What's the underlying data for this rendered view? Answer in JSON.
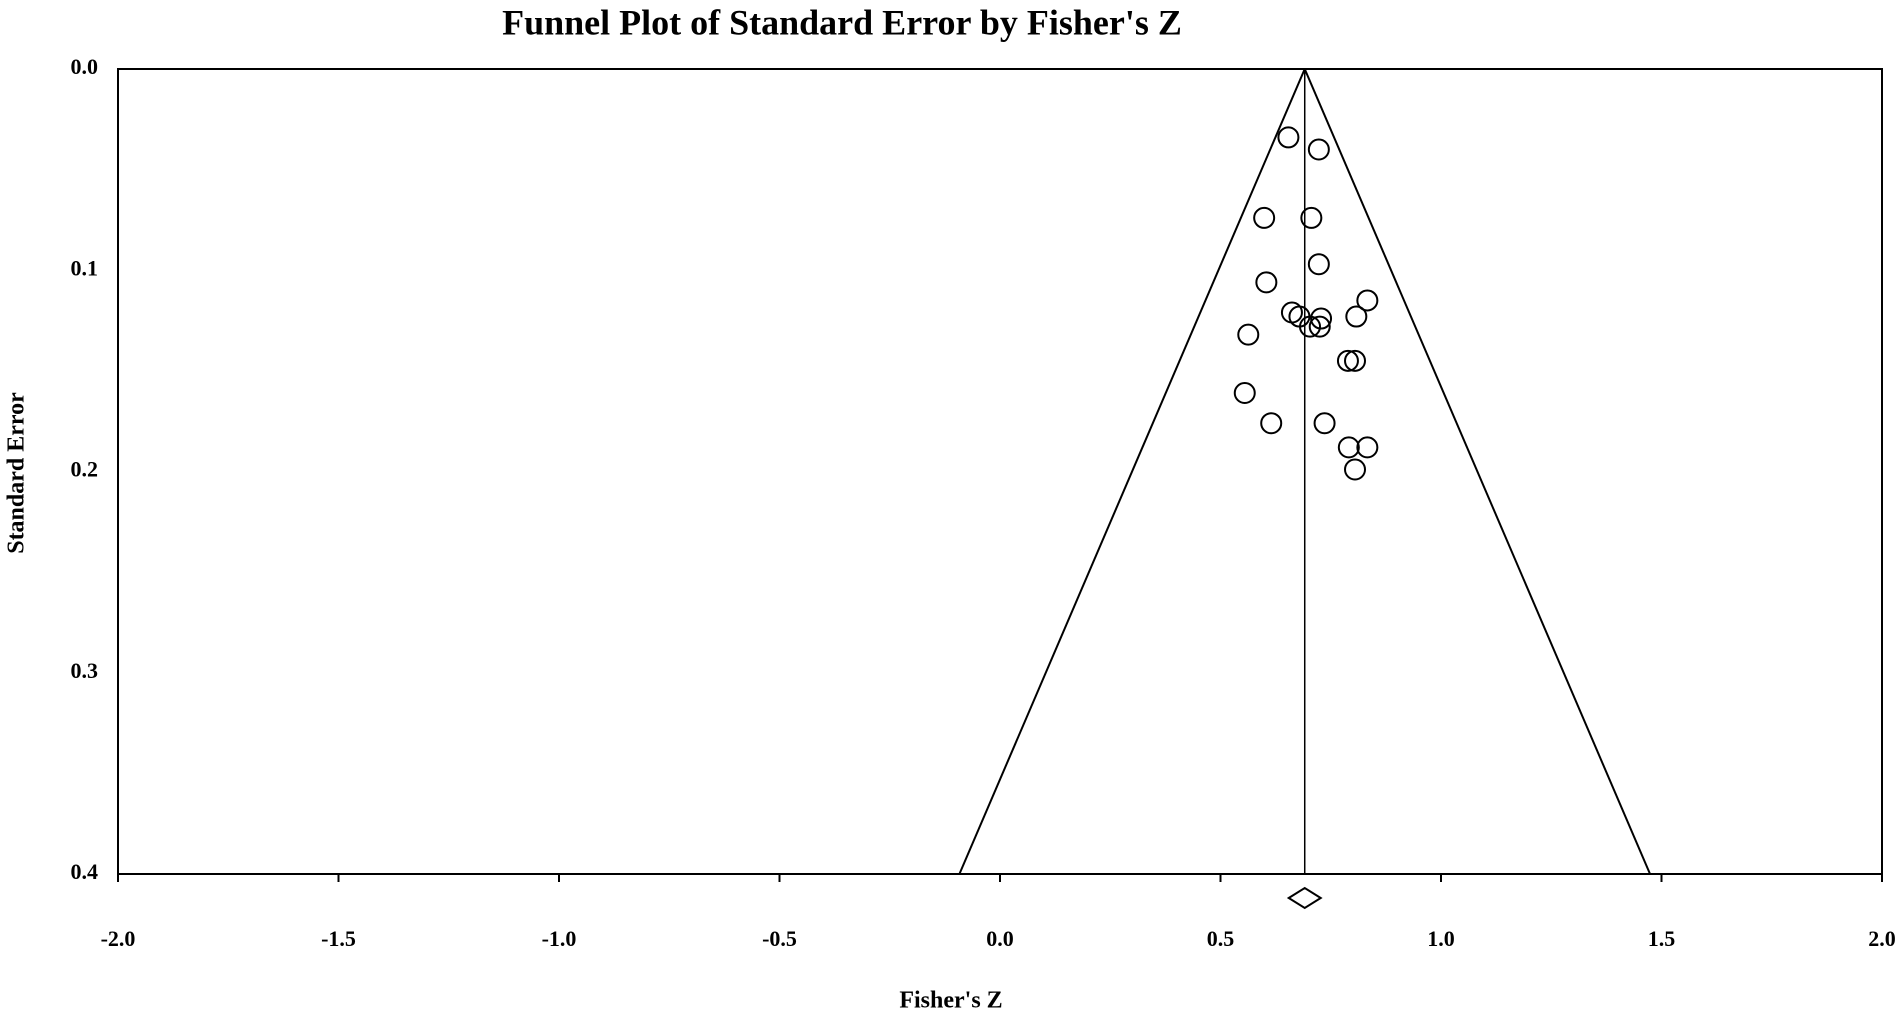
{
  "chart_data": {
    "type": "scatter",
    "title": "Funnel Plot of Standard Error by Fisher's Z",
    "x_label": "Fisher's Z",
    "y_label": "Standard Error",
    "x": [
      0.654,
      0.723,
      0.599,
      0.706,
      0.723,
      0.604,
      0.833,
      0.662,
      0.679,
      0.728,
      0.808,
      0.703,
      0.725,
      0.563,
      0.789,
      0.805,
      0.555,
      0.615,
      0.736,
      0.791,
      0.833,
      0.805
    ],
    "values": [
      0.034,
      0.04,
      0.074,
      0.074,
      0.097,
      0.106,
      0.115,
      0.121,
      0.123,
      0.124,
      0.123,
      0.128,
      0.128,
      0.132,
      0.145,
      0.145,
      0.161,
      0.176,
      0.176,
      0.188,
      0.188,
      0.199
    ],
    "summary": 0.691,
    "funnel_limits": [
      -0.092,
      1.474
    ],
    "color": "#000000",
    "xlim": [
      -2.0,
      2.0
    ],
    "ylim": [
      0.4,
      0.0
    ],
    "y_inverted": true,
    "xticks": [
      {
        "value": -2.0,
        "label": "-2.0"
      },
      -1.5,
      {
        "value": -1.0,
        "label": "-1.0"
      },
      -0.5,
      {
        "value": 0.0,
        "label": "0.0"
      },
      0.5,
      {
        "value": 1.0,
        "label": "1.0"
      },
      1.5,
      {
        "value": 2.0,
        "label": "2.0"
      }
    ],
    "yticks": [
      {
        "value": 0.0,
        "label": "0.0"
      },
      0.1,
      0.2,
      0.3,
      0.4
    ]
  }
}
